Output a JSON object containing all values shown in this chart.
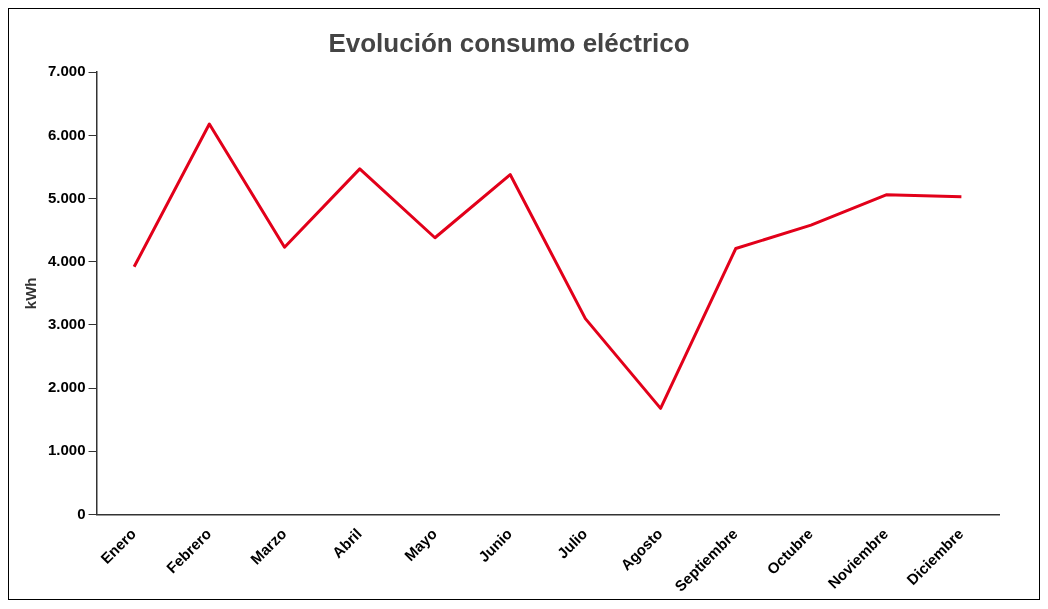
{
  "chart_data": {
    "type": "line",
    "title": "Evolución consumo eléctrico",
    "ylabel": "kWh",
    "categories": [
      "Enero",
      "Febrero",
      "Marzo",
      "Abril",
      "Mayo",
      "Junio",
      "Julio",
      "Agosto",
      "Septiembre",
      "Octubre",
      "Noviembre",
      "Diciembre"
    ],
    "series": [
      {
        "color": "#e2001a",
        "values": [
          3920,
          6180,
          4230,
          5470,
          4380,
          5380,
          3100,
          1680,
          4210,
          4580,
          5060,
          5030
        ]
      }
    ],
    "ylim": [
      0,
      7000
    ],
    "yticks": [
      {
        "value": 0,
        "label": "0"
      },
      {
        "value": 1000,
        "label": "1.000"
      },
      {
        "value": 2000,
        "label": "2.000"
      },
      {
        "value": 3000,
        "label": "3.000"
      },
      {
        "value": 4000,
        "label": "4.000"
      },
      {
        "value": 5000,
        "label": "5.000"
      },
      {
        "value": 6000,
        "label": "6.000"
      },
      {
        "value": 7000,
        "label": "7.000"
      }
    ],
    "grid": false,
    "legend": false,
    "marker": "none",
    "line_style": "solid"
  }
}
